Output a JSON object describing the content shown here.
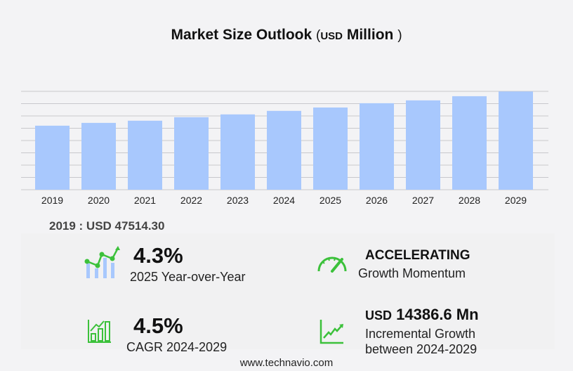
{
  "title": {
    "main": "Market Size Outlook",
    "open": "(",
    "unit": "USD",
    "unit_label": "Million",
    "close": ")"
  },
  "chart_data": {
    "type": "bar",
    "categories": [
      "2019",
      "2020",
      "2021",
      "2022",
      "2023",
      "2024",
      "2025",
      "2026",
      "2027",
      "2028",
      "2029"
    ],
    "values": [
      47514.3,
      49600,
      51200,
      53800,
      55900,
      58500,
      61000,
      64200,
      66300,
      69400,
      72900
    ],
    "ylim": [
      0,
      73000
    ],
    "grid": true,
    "bar_color": "#a8c8fd",
    "xlabel": "",
    "ylabel": ""
  },
  "base_value": "2019 : USD  47514.30",
  "stats": {
    "yoy": {
      "value": "4.3%",
      "label": "2025 Year-over-Year",
      "icon": "bar-trend-icon"
    },
    "momentum": {
      "value": "ACCELERATING",
      "label": "Growth Momentum",
      "icon": "speedometer-icon"
    },
    "cagr": {
      "value": "4.5%",
      "label": "CAGR 2024-2029",
      "icon": "growth-bars-icon"
    },
    "incremental": {
      "prefix": "USD",
      "value": "14386.6 Mn",
      "label1": "Incremental Growth",
      "label2": "between 2024-2029",
      "icon": "line-chart-icon"
    }
  },
  "accent": "#3cc13b",
  "footer": "www.technavio.com"
}
